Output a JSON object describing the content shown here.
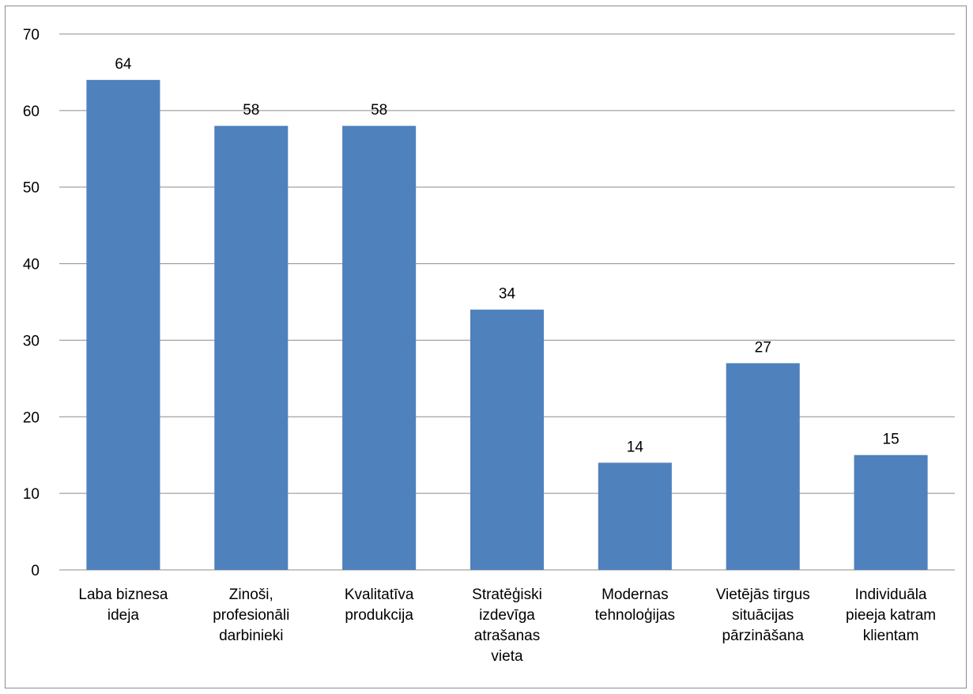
{
  "chart_data": {
    "type": "bar",
    "categories": [
      [
        "Laba biznesa",
        "ideja"
      ],
      [
        "Zinoši,",
        "profesionāli",
        "darbinieki"
      ],
      [
        "Kvalitatīva",
        "produkcija"
      ],
      [
        "Stratēģiski",
        "izdevīga",
        "atrašanas",
        "vieta"
      ],
      [
        "Modernas",
        "tehnoloģijas"
      ],
      [
        "Vietējās tirgus",
        "situācijas",
        "pārzināšana"
      ],
      [
        "Individuāla",
        "pieeja katram",
        "klientam"
      ]
    ],
    "values": [
      64,
      58,
      58,
      34,
      14,
      27,
      15
    ],
    "ylim": [
      0,
      70
    ],
    "yticks": [
      0,
      10,
      20,
      30,
      40,
      50,
      60,
      70
    ],
    "grid": true,
    "bar_color": "#4f81bd",
    "grid_color": "#8c8c8c"
  }
}
